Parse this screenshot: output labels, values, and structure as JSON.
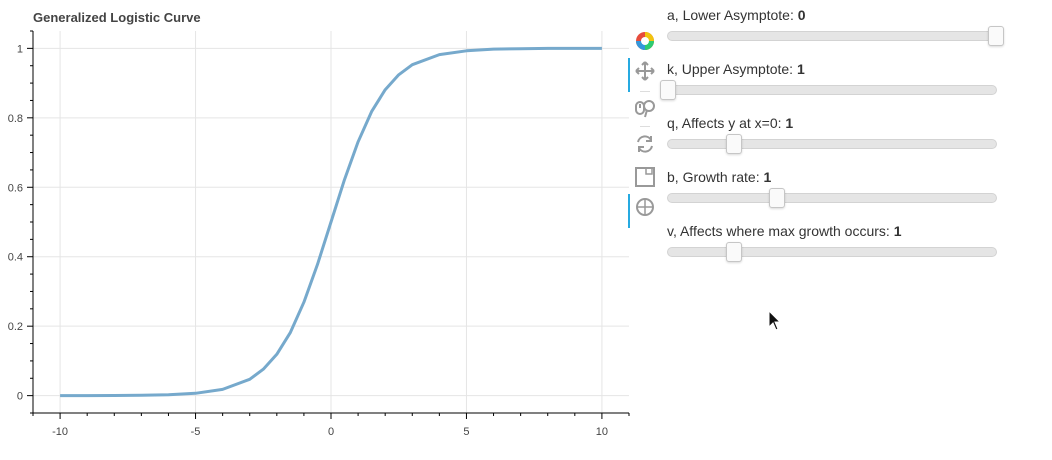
{
  "chart_data": {
    "type": "line",
    "title": "Generalized Logistic Curve",
    "xlabel": "",
    "ylabel": "",
    "xlim": [
      -11,
      11
    ],
    "ylim": [
      -0.05,
      1.05
    ],
    "x_ticks": [
      -10,
      -5,
      0,
      5,
      10
    ],
    "y_ticks": [
      0,
      0.2,
      0.4,
      0.6,
      0.8,
      1
    ],
    "grid": true,
    "line_color": "#76a9cc",
    "series": [
      {
        "x": [
          -10,
          -9,
          -8,
          -7,
          -6,
          -5,
          -4,
          -3,
          -2.5,
          -2,
          -1.5,
          -1,
          -0.5,
          0,
          0.5,
          1,
          1.5,
          2,
          2.5,
          3,
          4,
          5,
          6,
          7,
          8,
          9,
          10
        ],
        "values": [
          0.0,
          0.0001,
          0.0003,
          0.0009,
          0.0025,
          0.0067,
          0.018,
          0.047,
          0.076,
          0.119,
          0.182,
          0.269,
          0.378,
          0.5,
          0.622,
          0.731,
          0.818,
          0.881,
          0.924,
          0.953,
          0.982,
          0.993,
          0.998,
          0.999,
          1.0,
          1.0,
          1.0
        ]
      }
    ]
  },
  "toolbar": {
    "tools": [
      "logo-icon",
      "pan-icon",
      "wheel-zoom-icon",
      "reset-icon",
      "save-icon",
      "crosshair-icon"
    ]
  },
  "controls": {
    "sliders": [
      {
        "label": "a, Lower Asymptote: ",
        "value": "0",
        "position": 1.0
      },
      {
        "label": "k, Upper Asymptote: ",
        "value": "1",
        "position": 0.0
      },
      {
        "label": "q, Affects y at x=0: ",
        "value": "1",
        "position": 0.2
      },
      {
        "label": "b, Growth rate: ",
        "value": "1",
        "position": 0.333
      },
      {
        "label": "v, Affects where max growth occurs: ",
        "value": "1",
        "position": 0.2
      }
    ]
  }
}
